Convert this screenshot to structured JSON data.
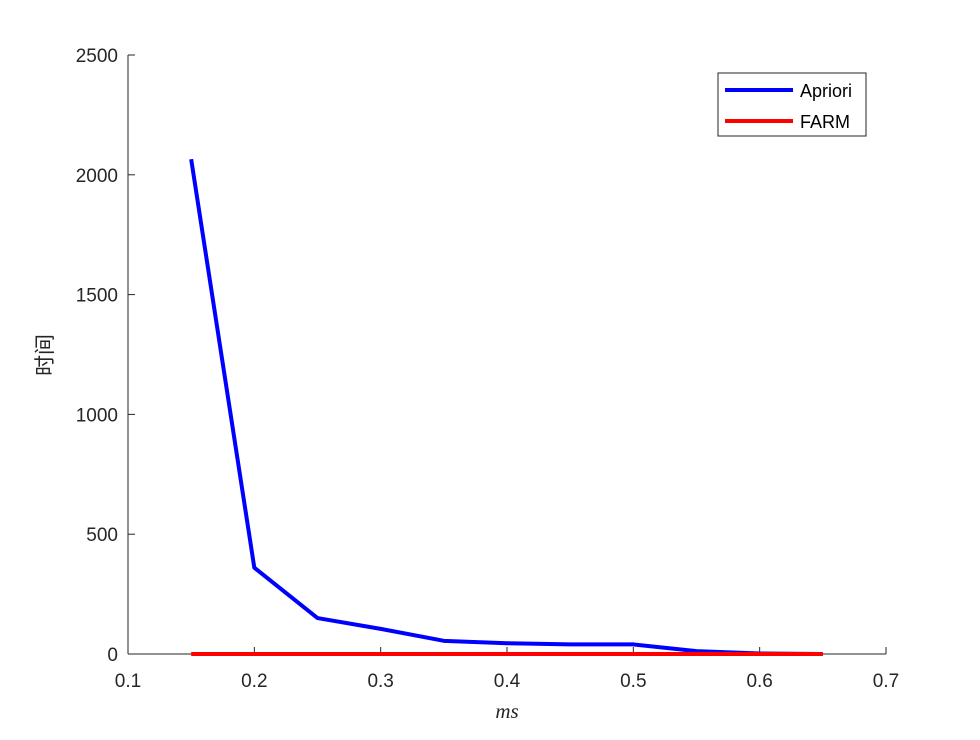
{
  "chart_data": {
    "type": "line",
    "x": [
      0.15,
      0.2,
      0.25,
      0.3,
      0.35,
      0.4,
      0.45,
      0.5,
      0.55,
      0.6,
      0.65
    ],
    "series": [
      {
        "name": "Apriori",
        "color": "#0000ff",
        "values": [
          2065,
          360,
          150,
          105,
          55,
          45,
          40,
          40,
          12,
          2,
          0
        ]
      },
      {
        "name": "FARM",
        "color": "#ff0000",
        "values": [
          0,
          0,
          0,
          0,
          0,
          0,
          0,
          0,
          0,
          0,
          0
        ]
      }
    ],
    "xlabel": "ms",
    "ylabel": "时间",
    "xlim": [
      0.1,
      0.7
    ],
    "xticks": [
      0.1,
      0.2,
      0.3,
      0.4,
      0.5,
      0.6,
      0.7
    ],
    "ylim": [
      0,
      2500
    ],
    "yticks": [
      0,
      500,
      1000,
      1500,
      2000,
      2500
    ],
    "legend": "northeast"
  }
}
